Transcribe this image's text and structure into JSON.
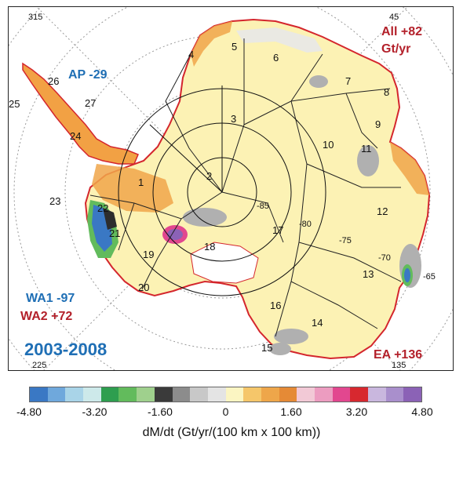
{
  "map": {
    "period": "2003-2008",
    "regions": {
      "ap": "AP -29",
      "all_line1": "All +82",
      "all_line2": "Gt/yr",
      "wa1": "WA1 -97",
      "wa2": "WA2 +72",
      "ea": "EA +136"
    },
    "longitudes": [
      "315",
      "45",
      "225",
      "135"
    ],
    "latitudes": [
      "-85",
      "-80",
      "-75",
      "-70",
      "-65"
    ],
    "basins": [
      "1",
      "2",
      "3",
      "4",
      "5",
      "6",
      "7",
      "8",
      "9",
      "10",
      "11",
      "12",
      "13",
      "14",
      "15",
      "16",
      "17",
      "18",
      "19",
      "20",
      "21",
      "22",
      "23",
      "24",
      "25",
      "26",
      "27"
    ]
  },
  "colorbar": {
    "colors": [
      "#3a78c4",
      "#6fa8dc",
      "#a9d4e8",
      "#cde9ea",
      "#2e9e4f",
      "#62bb5c",
      "#9fd08d",
      "#3a3a3a",
      "#8c8c8c",
      "#c8c8c8",
      "#e4e4e4",
      "#fbf5c2",
      "#f5c66a",
      "#eea64a",
      "#e58a36",
      "#f2c9d6",
      "#ec9cc0",
      "#e2478f",
      "#d7282f",
      "#c9b7de",
      "#a98fcc",
      "#8b62b6"
    ],
    "ticks": [
      "-4.80",
      "-3.20",
      "-1.60",
      "0",
      "1.60",
      "3.20",
      "4.80"
    ],
    "tick_values": [
      -4.8,
      -3.2,
      -1.6,
      0,
      1.6,
      3.2,
      4.8
    ],
    "range": [
      -4.8,
      4.8
    ],
    "label": "dM/dt (Gt/yr/(100 km x 100 km))"
  }
}
